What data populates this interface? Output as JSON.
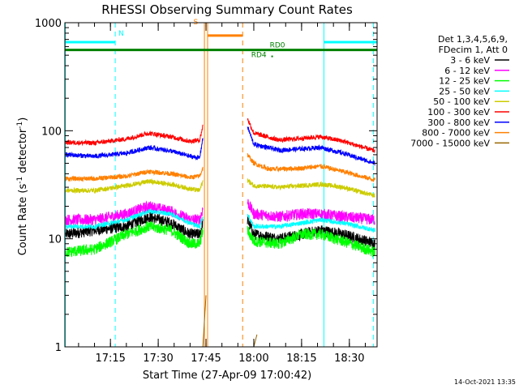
{
  "chart_data": {
    "type": "line",
    "title": "RHESSI Observing Summary Count Rates",
    "xlabel": "Start Time (27-Apr-09 17:00:42)",
    "ylabel_main": "Count Rate (s",
    "ylabel_sup1": "-1",
    "ylabel_mid": " detector",
    "ylabel_sup2": "-1",
    "ylabel_end": ")",
    "y_scale": "log",
    "ylim": [
      1,
      1000
    ],
    "xlim": [
      "17:00:42",
      "18:38:42"
    ],
    "x_ticks": [
      {
        "label": "17:15",
        "t": "17:15"
      },
      {
        "label": "17:30",
        "t": "17:30"
      },
      {
        "label": "17:45",
        "t": "17:45"
      },
      {
        "label": "18:00",
        "t": "18:00"
      },
      {
        "label": "18:15",
        "t": "18:15"
      },
      {
        "label": "18:30",
        "t": "18:30"
      }
    ],
    "y_ticks": [
      {
        "label": "1",
        "v": 1
      },
      {
        "label": "10",
        "v": 10
      },
      {
        "label": "100",
        "v": 100
      },
      {
        "label": "1000",
        "v": 1000
      }
    ],
    "legend": {
      "position": "right",
      "header_1": "Det 1,3,4,5,6,9,",
      "header_2": "FDecim 1, Att 0"
    },
    "timestamp": "14-Oct-2021 13:35",
    "flags": [
      {
        "label": "N",
        "color": "#00ffff",
        "segments": [
          [
            "17:00:42",
            "17:16:30"
          ],
          [
            "18:22:00",
            "18:38:42"
          ]
        ],
        "level": 660
      },
      {
        "label": "S",
        "color": "#ff8000",
        "segments": [
          [
            "17:45:30",
            "17:56:30"
          ]
        ],
        "level": 760
      },
      {
        "label": "RD0",
        "color": "#008000",
        "segments": [
          [
            "17:00:42",
            "18:38:42"
          ]
        ],
        "level": 560
      },
      {
        "label": "RD4",
        "color": "#008000",
        "segments": [],
        "level": 560
      }
    ],
    "vlines": [
      {
        "t": "17:00:50",
        "color": "#00ffff",
        "style": "solid"
      },
      {
        "t": "17:16:30",
        "color": "#00ffff",
        "style": "dashed"
      },
      {
        "t": "17:44:30",
        "color": "#ff8000",
        "style": "solid"
      },
      {
        "t": "17:45:30",
        "color": "#ff8000",
        "style": "solid"
      },
      {
        "t": "17:56:30",
        "color": "#ff8000",
        "style": "dashed"
      },
      {
        "t": "18:22:00",
        "color": "#00ffff",
        "style": "solid"
      },
      {
        "t": "18:37:30",
        "color": "#00ffff",
        "style": "dashed"
      }
    ],
    "series": [
      {
        "name": "3 - 6 keV",
        "color": "#000000",
        "seg1": [
          [
            "17:01",
            11
          ],
          [
            "17:10",
            12
          ],
          [
            "17:20",
            13
          ],
          [
            "17:27",
            16
          ],
          [
            "17:34",
            14
          ],
          [
            "17:40",
            11
          ],
          [
            "17:43",
            11
          ],
          [
            "17:44",
            14
          ]
        ],
        "seg2": [
          [
            "17:58",
            15
          ],
          [
            "18:00",
            11
          ],
          [
            "18:08",
            10
          ],
          [
            "18:15",
            11
          ],
          [
            "18:21",
            12
          ],
          [
            "18:28",
            11
          ],
          [
            "18:38",
            9
          ]
        ]
      },
      {
        "name": "6 - 12 keV",
        "color": "#ff00ff",
        "seg1": [
          [
            "17:01",
            15
          ],
          [
            "17:10",
            15
          ],
          [
            "17:20",
            17
          ],
          [
            "17:27",
            20
          ],
          [
            "17:34",
            18
          ],
          [
            "17:40",
            15
          ],
          [
            "17:43",
            15
          ],
          [
            "17:44",
            19
          ]
        ],
        "seg2": [
          [
            "17:58",
            22
          ],
          [
            "18:00",
            17
          ],
          [
            "18:08",
            16
          ],
          [
            "18:15",
            17
          ],
          [
            "18:21",
            17
          ],
          [
            "18:28",
            16
          ],
          [
            "18:38",
            15
          ]
        ]
      },
      {
        "name": "12 - 25 keV",
        "color": "#00ff00",
        "seg1": [
          [
            "17:01",
            7.5
          ],
          [
            "17:10",
            8
          ],
          [
            "17:20",
            11
          ],
          [
            "17:27",
            13
          ],
          [
            "17:34",
            12
          ],
          [
            "17:40",
            9
          ],
          [
            "17:43",
            9
          ],
          [
            "17:44",
            12
          ]
        ],
        "seg2": [
          [
            "17:58",
            12
          ],
          [
            "18:00",
            9.5
          ],
          [
            "18:08",
            9
          ],
          [
            "18:15",
            11
          ],
          [
            "18:21",
            11
          ],
          [
            "18:28",
            9.5
          ],
          [
            "18:38",
            7.5
          ]
        ]
      },
      {
        "name": "25 - 50 keV",
        "color": "#00ffff",
        "seg1": [
          [
            "17:01",
            13
          ],
          [
            "17:10",
            13
          ],
          [
            "17:20",
            15
          ],
          [
            "17:27",
            18
          ],
          [
            "17:34",
            17
          ],
          [
            "17:40",
            14
          ],
          [
            "17:43",
            13
          ],
          [
            "17:44",
            16
          ]
        ],
        "seg2": [
          [
            "17:58",
            17
          ],
          [
            "18:00",
            13
          ],
          [
            "18:08",
            13
          ],
          [
            "18:15",
            14
          ],
          [
            "18:21",
            15
          ],
          [
            "18:28",
            14
          ],
          [
            "18:38",
            12
          ]
        ]
      },
      {
        "name": "50 - 100 keV",
        "color": "#cccc00",
        "seg1": [
          [
            "17:01",
            28
          ],
          [
            "17:10",
            28
          ],
          [
            "17:20",
            31
          ],
          [
            "17:27",
            34
          ],
          [
            "17:34",
            32
          ],
          [
            "17:40",
            29
          ],
          [
            "17:43",
            28
          ],
          [
            "17:44",
            34
          ]
        ],
        "seg2": [
          [
            "17:58",
            35
          ],
          [
            "18:00",
            31
          ],
          [
            "18:08",
            30
          ],
          [
            "18:15",
            31
          ],
          [
            "18:21",
            32
          ],
          [
            "18:28",
            30
          ],
          [
            "18:38",
            25
          ]
        ]
      },
      {
        "name": "100 - 300 keV",
        "color": "#ff0000",
        "seg1": [
          [
            "17:01",
            78
          ],
          [
            "17:10",
            77
          ],
          [
            "17:20",
            84
          ],
          [
            "17:27",
            95
          ],
          [
            "17:34",
            88
          ],
          [
            "17:40",
            80
          ],
          [
            "17:43",
            82
          ],
          [
            "17:44",
            110
          ]
        ],
        "seg2": [
          [
            "17:58",
            130
          ],
          [
            "18:00",
            95
          ],
          [
            "18:08",
            82
          ],
          [
            "18:15",
            85
          ],
          [
            "18:21",
            88
          ],
          [
            "18:28",
            80
          ],
          [
            "18:38",
            65
          ]
        ]
      },
      {
        "name": "300 - 800 keV",
        "color": "#0000ff",
        "seg1": [
          [
            "17:01",
            60
          ],
          [
            "17:10",
            58
          ],
          [
            "17:20",
            62
          ],
          [
            "17:27",
            70
          ],
          [
            "17:34",
            65
          ],
          [
            "17:40",
            58
          ],
          [
            "17:43",
            56
          ],
          [
            "17:44",
            85
          ]
        ],
        "seg2": [
          [
            "17:58",
            110
          ],
          [
            "18:00",
            75
          ],
          [
            "18:08",
            66
          ],
          [
            "18:15",
            68
          ],
          [
            "18:21",
            70
          ],
          [
            "18:28",
            62
          ],
          [
            "18:38",
            50
          ]
        ]
      },
      {
        "name": "800 - 7000 keV",
        "color": "#ff8000",
        "seg1": [
          [
            "17:01",
            36
          ],
          [
            "17:10",
            36
          ],
          [
            "17:20",
            38
          ],
          [
            "17:27",
            42
          ],
          [
            "17:34",
            40
          ],
          [
            "17:40",
            37
          ],
          [
            "17:43",
            38
          ],
          [
            "17:44",
            45
          ]
        ],
        "seg2": [
          [
            "17:58",
            60
          ],
          [
            "18:00",
            50
          ],
          [
            "18:05",
            44
          ],
          [
            "18:15",
            45
          ],
          [
            "18:21",
            47
          ],
          [
            "18:28",
            42
          ],
          [
            "18:38",
            35
          ]
        ]
      },
      {
        "name": "7000 - 15000 keV",
        "color": "#996600",
        "seg1": [
          [
            "17:44",
            1
          ],
          [
            "17:45",
            3
          ]
        ],
        "seg2": [
          [
            "18:00",
            1
          ],
          [
            "18:01",
            1.3
          ]
        ]
      }
    ]
  }
}
